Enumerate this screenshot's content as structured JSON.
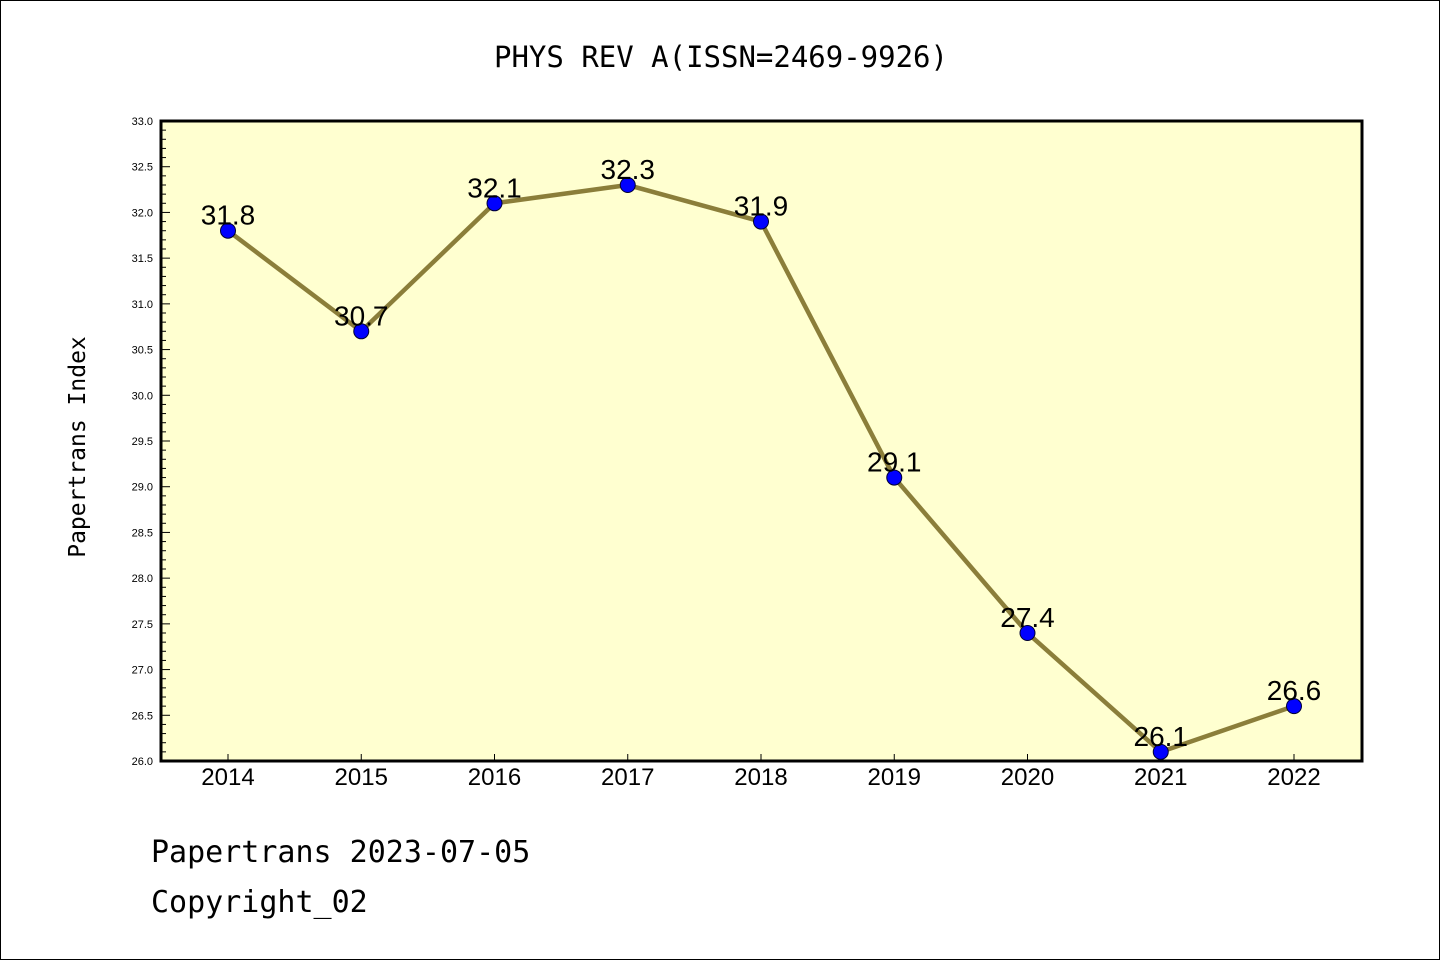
{
  "chart_data": {
    "type": "line",
    "title": "PHYS REV A(ISSN=2469-9926)",
    "ylabel": "Papertrans Index",
    "xlabel": "",
    "categories": [
      "2014",
      "2015",
      "2016",
      "2017",
      "2018",
      "2019",
      "2020",
      "2021",
      "2022"
    ],
    "values": [
      31.8,
      30.7,
      32.1,
      32.3,
      31.9,
      29.1,
      27.4,
      26.1,
      26.6
    ],
    "data_labels": [
      "31.8",
      "30.7",
      "32.1",
      "32.3",
      "31.9",
      "29.1",
      "27.4",
      "26.1",
      "26.6"
    ],
    "ylim": [
      26.0,
      33.0
    ],
    "yticks": [
      "26.0",
      "26.5",
      "27.0",
      "27.5",
      "28.0",
      "28.5",
      "29.0",
      "29.5",
      "30.0",
      "30.5",
      "31.0",
      "31.5",
      "32.0",
      "32.5",
      "33.0"
    ],
    "grid": false,
    "colors": {
      "plot_background": "#FFFFD0",
      "line": "#8B7E3A",
      "marker": "#0000FF"
    }
  },
  "footer": {
    "date_line": "Papertrans 2023-07-05",
    "copyright": "Copyright_02"
  }
}
